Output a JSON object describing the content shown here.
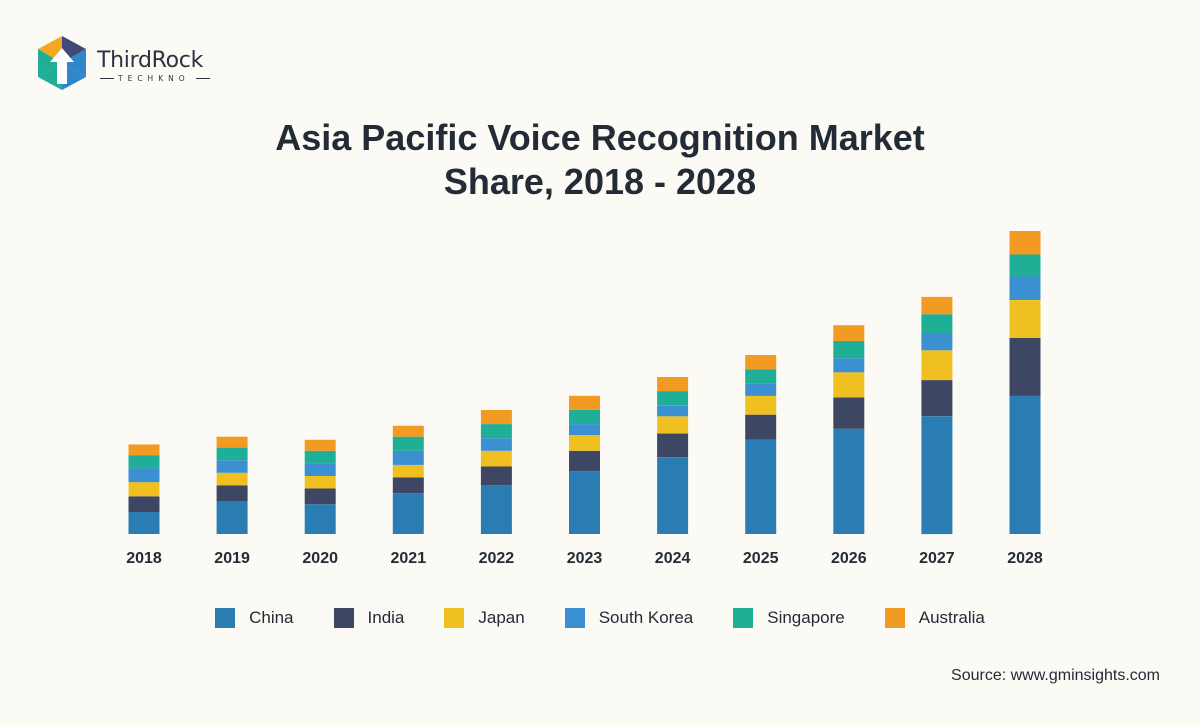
{
  "brand": {
    "name": "ThirdRock",
    "tagline": "TECHKNO"
  },
  "title_lines": [
    "Asia Pacific Voice Recognition Market",
    "Share, 2018 - 2028"
  ],
  "source": "Source: www.gminsights.com",
  "chart_data": {
    "type": "bar",
    "stacked": true,
    "title": "Asia Pacific Voice Recognition Market Share, 2018 - 2028",
    "xlabel": "",
    "ylabel": "",
    "y_axis_visible": false,
    "grid": false,
    "legend_position": "bottom",
    "ylim": [
      0,
      10
    ],
    "categories": [
      "2018",
      "2019",
      "2020",
      "2021",
      "2022",
      "2023",
      "2024",
      "2025",
      "2026",
      "2027",
      "2028"
    ],
    "series": [
      {
        "name": "China",
        "color": "#2a7db3",
        "values": [
          0.7,
          1.05,
          0.95,
          1.3,
          1.55,
          2.0,
          2.45,
          3.0,
          3.35,
          3.75,
          4.4
        ]
      },
      {
        "name": "India",
        "color": "#3d4663",
        "values": [
          0.5,
          0.5,
          0.5,
          0.5,
          0.6,
          0.65,
          0.75,
          0.8,
          1.0,
          1.15,
          1.85
        ]
      },
      {
        "name": "Japan",
        "color": "#f0c020",
        "values": [
          0.45,
          0.4,
          0.4,
          0.4,
          0.5,
          0.5,
          0.55,
          0.6,
          0.8,
          0.95,
          1.2
        ]
      },
      {
        "name": "South Korea",
        "color": "#3a90d0",
        "values": [
          0.45,
          0.4,
          0.4,
          0.45,
          0.4,
          0.35,
          0.35,
          0.4,
          0.45,
          0.55,
          0.75
        ]
      },
      {
        "name": "Singapore",
        "color": "#1fae96",
        "values": [
          0.4,
          0.4,
          0.4,
          0.45,
          0.45,
          0.45,
          0.45,
          0.45,
          0.55,
          0.6,
          0.7
        ]
      },
      {
        "name": "Australia",
        "color": "#f29a22",
        "values": [
          0.35,
          0.35,
          0.35,
          0.35,
          0.45,
          0.45,
          0.45,
          0.45,
          0.5,
          0.55,
          0.75
        ]
      }
    ]
  }
}
